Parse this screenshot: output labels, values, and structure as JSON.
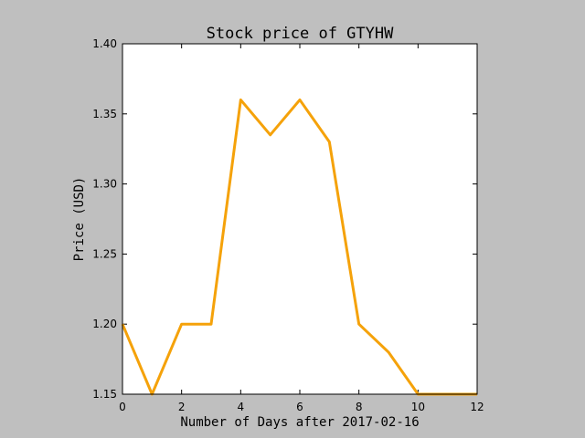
{
  "chart_data": {
    "type": "line",
    "title": "Stock price of GTYHW",
    "xlabel": "Number of Days after 2017-02-16",
    "ylabel": "Price (USD)",
    "xlim": [
      0,
      12
    ],
    "ylim": [
      1.15,
      1.4
    ],
    "x_ticks": [
      "0",
      "2",
      "4",
      "6",
      "8",
      "10",
      "12"
    ],
    "y_ticks": [
      "1.15",
      "1.20",
      "1.25",
      "1.30",
      "1.35",
      "1.40"
    ],
    "grid": false,
    "series": [
      {
        "color": "#f5a20a",
        "x": [
          0,
          1,
          2,
          3,
          4,
          5,
          6,
          7,
          8,
          9,
          10,
          11,
          12
        ],
        "values": [
          1.2,
          1.15,
          1.2,
          1.2,
          1.36,
          1.335,
          1.36,
          1.33,
          1.2,
          1.18,
          1.15,
          1.15,
          1.15
        ]
      }
    ]
  },
  "colors": {
    "figure_background": "#bfbfbf",
    "plot_background": "#ffffff",
    "line": "#f5a20a"
  }
}
